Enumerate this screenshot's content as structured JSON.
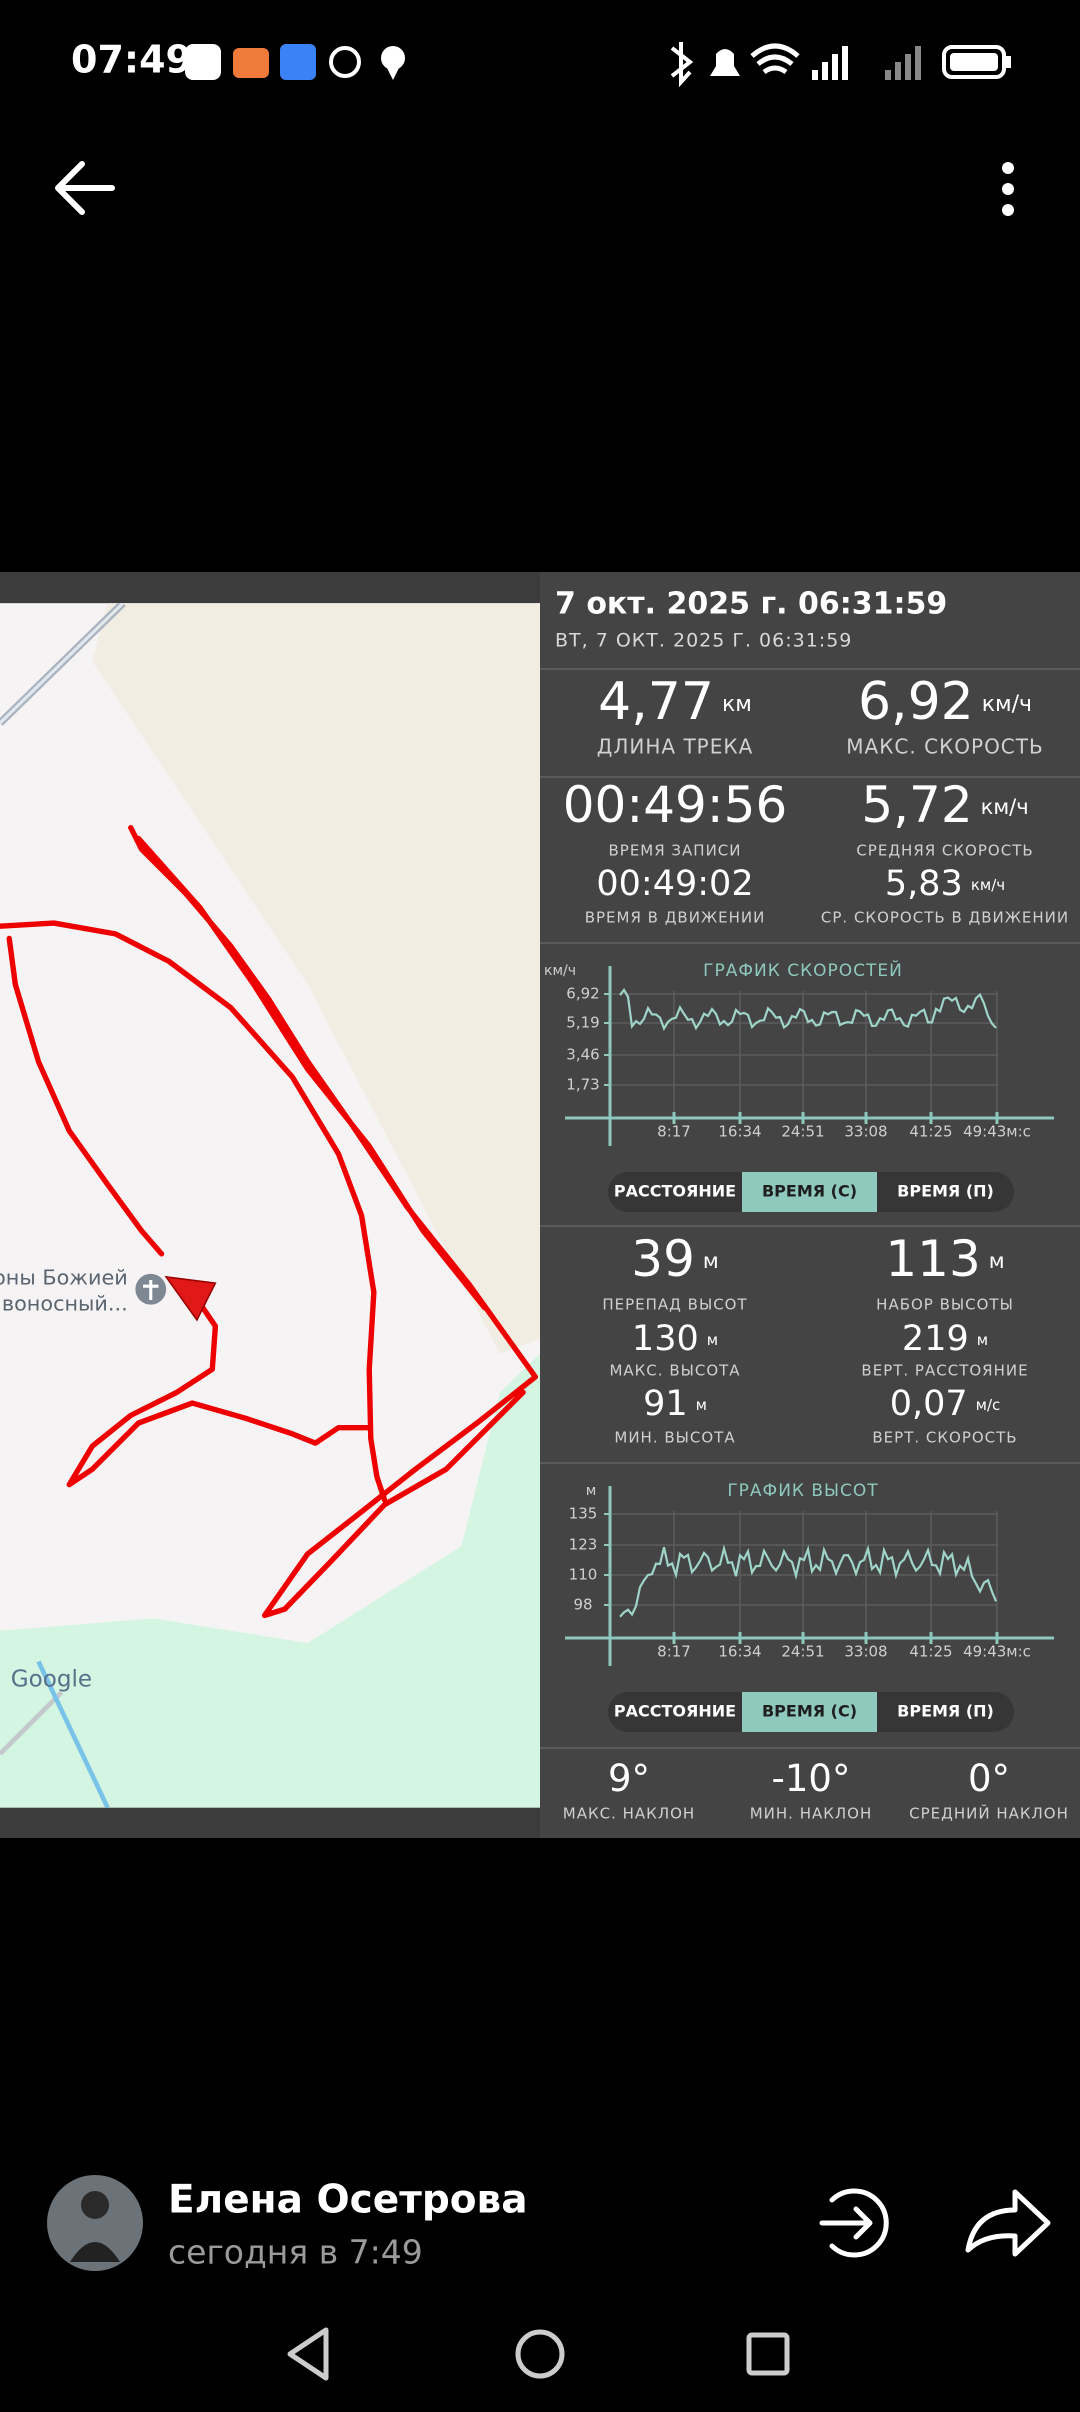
{
  "status_bar": {
    "time": "07:49"
  },
  "image": {
    "map": {
      "place_line_1": "коны Божией",
      "place_line_2": "Живоносный...",
      "logo": "Google"
    },
    "header": {
      "title": "7 окт. 2025 г. 06:31:59",
      "subtitle": "ВТ, 7 ОКТ. 2025 Г. 06:31:59"
    },
    "track_stats": [
      {
        "value": "4,77",
        "unit": "км",
        "label": "ДЛИНА ТРЕКА"
      },
      {
        "value": "6,92",
        "unit": "км/ч",
        "label": "МАКС. СКОРОСТЬ"
      }
    ],
    "time_stats": {
      "left": [
        {
          "value": "00:49:56",
          "label": "ВРЕМЯ ЗАПИСИ"
        },
        {
          "value": "00:49:02",
          "label": "ВРЕМЯ В ДВИЖЕНИИ"
        }
      ],
      "right": [
        {
          "value": "5,72",
          "unit": "км/ч",
          "label": "СРЕДНЯЯ СКОРОСТЬ"
        },
        {
          "value": "5,83",
          "unit": "км/ч",
          "label": "СР. СКОРОСТЬ В ДВИЖЕНИИ"
        }
      ]
    },
    "speed_chart": {
      "title": "ГРАФИК СКОРОСТЕЙ",
      "unit": "км/ч",
      "y_labels": [
        "6,92",
        "5,19",
        "3,46",
        "1,73"
      ],
      "x_labels": [
        "8:17",
        "16:34",
        "24:51",
        "33:08",
        "41:25",
        "49:43м:с"
      ],
      "toggle": [
        "РАССТОЯНИЕ",
        "ВРЕМЯ (С)",
        "ВРЕМЯ (П)"
      ]
    },
    "elevation_stats": {
      "left": [
        {
          "value": "39",
          "unit": "м",
          "label": "ПЕРЕПАД ВЫСОТ"
        },
        {
          "value": "130",
          "unit": "м",
          "label": "МАКС. ВЫСОТА"
        },
        {
          "value": "91",
          "unit": "м",
          "label": "МИН. ВЫСОТА"
        }
      ],
      "right": [
        {
          "value": "113",
          "unit": "м",
          "label": "НАБОР ВЫСОТЫ"
        },
        {
          "value": "219",
          "unit": "м",
          "label": "ВЕРТ. РАССТОЯНИЕ"
        },
        {
          "value": "0,07",
          "unit": "м/с",
          "label": "ВЕРТ. СКОРОСТЬ"
        }
      ]
    },
    "elevation_chart": {
      "title": "ГРАФИК ВЫСОТ",
      "unit": "м",
      "y_labels": [
        "135",
        "123",
        "110",
        "98"
      ],
      "x_labels": [
        "8:17",
        "16:34",
        "24:51",
        "33:08",
        "41:25",
        "49:43м:с"
      ],
      "toggle": [
        "РАССТОЯНИЕ",
        "ВРЕМЯ (С)",
        "ВРЕМЯ (П)"
      ]
    },
    "slope_stats": [
      {
        "value": "9°",
        "label": "МАКС. НАКЛОН"
      },
      {
        "value": "-10°",
        "label": "МИН. НАКЛОН"
      },
      {
        "value": "0°",
        "label": "СРЕДНИЙ НАКЛОН"
      }
    ]
  },
  "post": {
    "author": "Елена Осетрова",
    "time": "сегодня в 7:49"
  }
}
